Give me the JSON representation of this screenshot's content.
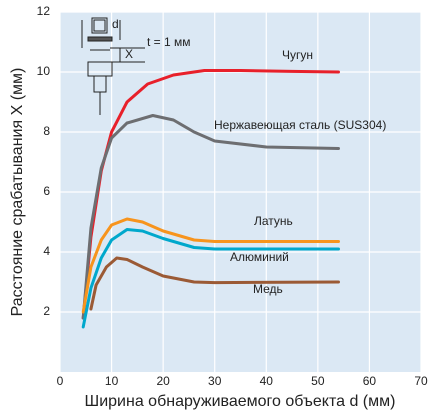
{
  "chart_data": {
    "type": "line",
    "xlabel": "Ширина обнаруживаемого объекта d (мм)",
    "ylabel": "Расстояние срабатывания X (мм)",
    "annotations": [
      "d",
      "X",
      "t = 1 мм"
    ],
    "xlim": [
      0,
      70
    ],
    "xticks": [
      0,
      10,
      20,
      30,
      40,
      50,
      60,
      70
    ],
    "ylim": [
      0,
      12
    ],
    "yticks": [
      2,
      4,
      6,
      8,
      10,
      12
    ],
    "grid": true,
    "series": [
      {
        "name": "Чугун",
        "color": "#e8202a",
        "x": [
          4.5,
          6,
          8,
          10,
          13,
          17,
          22,
          28,
          35,
          45,
          54
        ],
        "values": [
          1.8,
          4.5,
          6.7,
          8,
          9,
          9.6,
          9.9,
          10.05,
          10.05,
          10.02,
          10
        ]
      },
      {
        "name": "Нержавеющая сталь (SUS304)",
        "color": "#6d6e71",
        "x": [
          4.5,
          6,
          8,
          10,
          13,
          18,
          22,
          26,
          30,
          40,
          54
        ],
        "values": [
          1.8,
          4.8,
          6.8,
          7.8,
          8.3,
          8.55,
          8.4,
          8,
          7.7,
          7.5,
          7.45
        ]
      },
      {
        "name": "Латунь",
        "color": "#f7941d",
        "x": [
          4.5,
          6,
          8,
          10,
          13,
          16,
          20,
          26,
          30,
          40,
          54
        ],
        "values": [
          2,
          3.5,
          4.4,
          4.9,
          5.1,
          5,
          4.7,
          4.4,
          4.35,
          4.35,
          4.35
        ]
      },
      {
        "name": "Алюминий",
        "color": "#00a8cc",
        "x": [
          4.5,
          6,
          8,
          10,
          13,
          16,
          20,
          26,
          30,
          54
        ],
        "values": [
          1.5,
          2.8,
          3.8,
          4.4,
          4.75,
          4.7,
          4.45,
          4.15,
          4.1,
          4.1
        ]
      },
      {
        "name": "Медь",
        "color": "#9b5a35",
        "x": [
          6,
          7,
          9,
          11,
          13,
          16,
          20,
          26,
          30,
          54
        ],
        "values": [
          2.1,
          2.9,
          3.5,
          3.8,
          3.75,
          3.5,
          3.2,
          3.0,
          2.98,
          3.0
        ]
      }
    ]
  }
}
